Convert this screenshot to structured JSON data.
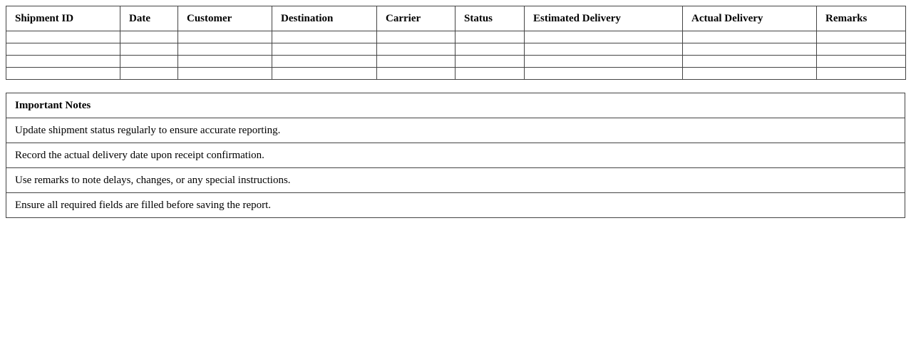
{
  "shipments": {
    "columns": [
      "Shipment ID",
      "Date",
      "Customer",
      "Destination",
      "Carrier",
      "Status",
      "Estimated Delivery",
      "Actual Delivery",
      "Remarks"
    ],
    "rows": [
      [
        "",
        "",
        "",
        "",
        "",
        "",
        "",
        "",
        ""
      ],
      [
        "",
        "",
        "",
        "",
        "",
        "",
        "",
        "",
        ""
      ],
      [
        "",
        "",
        "",
        "",
        "",
        "",
        "",
        "",
        ""
      ],
      [
        "",
        "",
        "",
        "",
        "",
        "",
        "",
        "",
        ""
      ]
    ]
  },
  "notes": {
    "title": "Important Notes",
    "items": [
      "Update shipment status regularly to ensure accurate reporting.",
      "Record the actual delivery date upon receipt confirmation.",
      "Use remarks to note delays, changes, or any special instructions.",
      "Ensure all required fields are filled before saving the report."
    ]
  }
}
